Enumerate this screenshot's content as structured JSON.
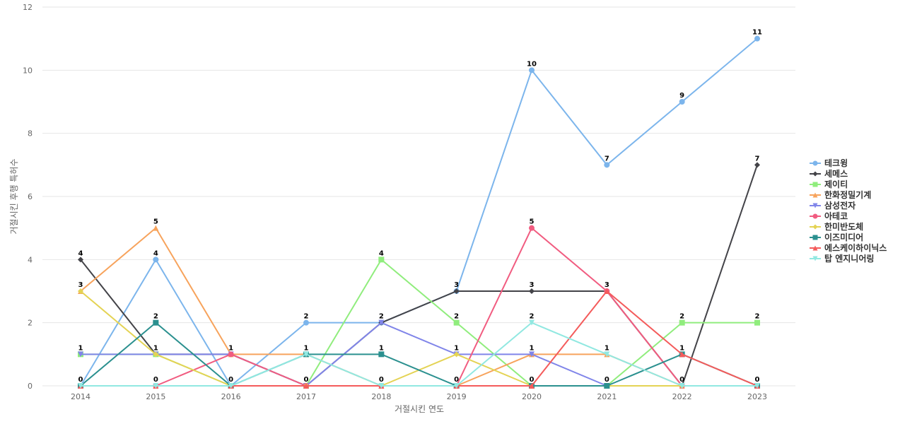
{
  "chart_data": {
    "type": "line",
    "title": "",
    "xlabel": "거절시킨 연도",
    "ylabel": "거절시킨 후행 특허수",
    "x": [
      "2014",
      "2015",
      "2016",
      "2017",
      "2018",
      "2019",
      "2020",
      "2021",
      "2022",
      "2023"
    ],
    "ylim": [
      0,
      12
    ],
    "yticks": [
      0,
      2,
      4,
      6,
      8,
      10,
      12
    ],
    "grid": true,
    "legend": "right",
    "series": [
      {
        "name": "테크윙",
        "color": "#7cb5ec",
        "marker": "circle",
        "values": [
          0,
          4,
          0,
          2,
          2,
          3,
          10,
          7,
          9,
          11
        ]
      },
      {
        "name": "세메스",
        "color": "#434348",
        "marker": "diamond",
        "values": [
          4,
          1,
          1,
          0,
          2,
          3,
          3,
          3,
          0,
          7
        ]
      },
      {
        "name": "제이티",
        "color": "#90ed7d",
        "marker": "square",
        "values": [
          1,
          1,
          0,
          0,
          4,
          2,
          0,
          0,
          2,
          2
        ]
      },
      {
        "name": "한화정밀기계",
        "color": "#f7a35c",
        "marker": "triangle",
        "values": [
          3,
          5,
          1,
          1,
          0,
          0,
          1,
          1,
          0,
          0
        ]
      },
      {
        "name": "삼성전자",
        "color": "#8085e9",
        "marker": "triangle-down",
        "values": [
          1,
          1,
          1,
          0,
          2,
          1,
          1,
          0,
          0,
          0
        ]
      },
      {
        "name": "아테코",
        "color": "#f15c80",
        "marker": "circle",
        "values": [
          0,
          0,
          1,
          0,
          0,
          0,
          5,
          3,
          0,
          0
        ]
      },
      {
        "name": "한미반도체",
        "color": "#e4d354",
        "marker": "diamond",
        "values": [
          3,
          1,
          0,
          0,
          0,
          1,
          0,
          0,
          0,
          0
        ]
      },
      {
        "name": "이즈미디어",
        "color": "#2b908f",
        "marker": "square",
        "values": [
          0,
          2,
          0,
          1,
          1,
          0,
          0,
          0,
          1,
          0
        ]
      },
      {
        "name": "에스케이하이닉스",
        "color": "#f45b5b",
        "marker": "triangle",
        "values": [
          0,
          0,
          0,
          0,
          0,
          0,
          0,
          3,
          1,
          0
        ]
      },
      {
        "name": "탑 엔지니어링",
        "color": "#91e8e1",
        "marker": "triangle-down",
        "values": [
          0,
          0,
          0,
          1,
          0,
          0,
          2,
          1,
          0,
          0
        ]
      }
    ],
    "data_labels": [
      {
        "x": "2014",
        "y": 4,
        "text": "4"
      },
      {
        "x": "2014",
        "y": 3,
        "text": "3"
      },
      {
        "x": "2014",
        "y": 1,
        "text": "1"
      },
      {
        "x": "2014",
        "y": 0,
        "text": "0"
      },
      {
        "x": "2015",
        "y": 5,
        "text": "5"
      },
      {
        "x": "2015",
        "y": 4,
        "text": "4"
      },
      {
        "x": "2015",
        "y": 2,
        "text": "2"
      },
      {
        "x": "2015",
        "y": 1,
        "text": "1"
      },
      {
        "x": "2015",
        "y": 0,
        "text": "0"
      },
      {
        "x": "2016",
        "y": 1,
        "text": "1"
      },
      {
        "x": "2016",
        "y": 0,
        "text": "0"
      },
      {
        "x": "2017",
        "y": 2,
        "text": "2"
      },
      {
        "x": "2017",
        "y": 1,
        "text": "1"
      },
      {
        "x": "2017",
        "y": 0,
        "text": "0"
      },
      {
        "x": "2018",
        "y": 4,
        "text": "4"
      },
      {
        "x": "2018",
        "y": 2,
        "text": "2"
      },
      {
        "x": "2018",
        "y": 1,
        "text": "1"
      },
      {
        "x": "2018",
        "y": 0,
        "text": "0"
      },
      {
        "x": "2019",
        "y": 3,
        "text": "3"
      },
      {
        "x": "2019",
        "y": 2,
        "text": "2"
      },
      {
        "x": "2019",
        "y": 1,
        "text": "1"
      },
      {
        "x": "2019",
        "y": 0,
        "text": "0"
      },
      {
        "x": "2020",
        "y": 10,
        "text": "10"
      },
      {
        "x": "2020",
        "y": 5,
        "text": "5"
      },
      {
        "x": "2020",
        "y": 3,
        "text": "3"
      },
      {
        "x": "2020",
        "y": 2,
        "text": "2"
      },
      {
        "x": "2020",
        "y": 1,
        "text": "1"
      },
      {
        "x": "2020",
        "y": 0,
        "text": "0"
      },
      {
        "x": "2021",
        "y": 7,
        "text": "7"
      },
      {
        "x": "2021",
        "y": 3,
        "text": "3"
      },
      {
        "x": "2021",
        "y": 1,
        "text": "1"
      },
      {
        "x": "2021",
        "y": 0,
        "text": "0"
      },
      {
        "x": "2022",
        "y": 9,
        "text": "9"
      },
      {
        "x": "2022",
        "y": 2,
        "text": "2"
      },
      {
        "x": "2022",
        "y": 1,
        "text": "1"
      },
      {
        "x": "2022",
        "y": 0,
        "text": "0"
      },
      {
        "x": "2023",
        "y": 11,
        "text": "11"
      },
      {
        "x": "2023",
        "y": 7,
        "text": "7"
      },
      {
        "x": "2023",
        "y": 2,
        "text": "2"
      },
      {
        "x": "2023",
        "y": 0,
        "text": "0"
      }
    ]
  }
}
